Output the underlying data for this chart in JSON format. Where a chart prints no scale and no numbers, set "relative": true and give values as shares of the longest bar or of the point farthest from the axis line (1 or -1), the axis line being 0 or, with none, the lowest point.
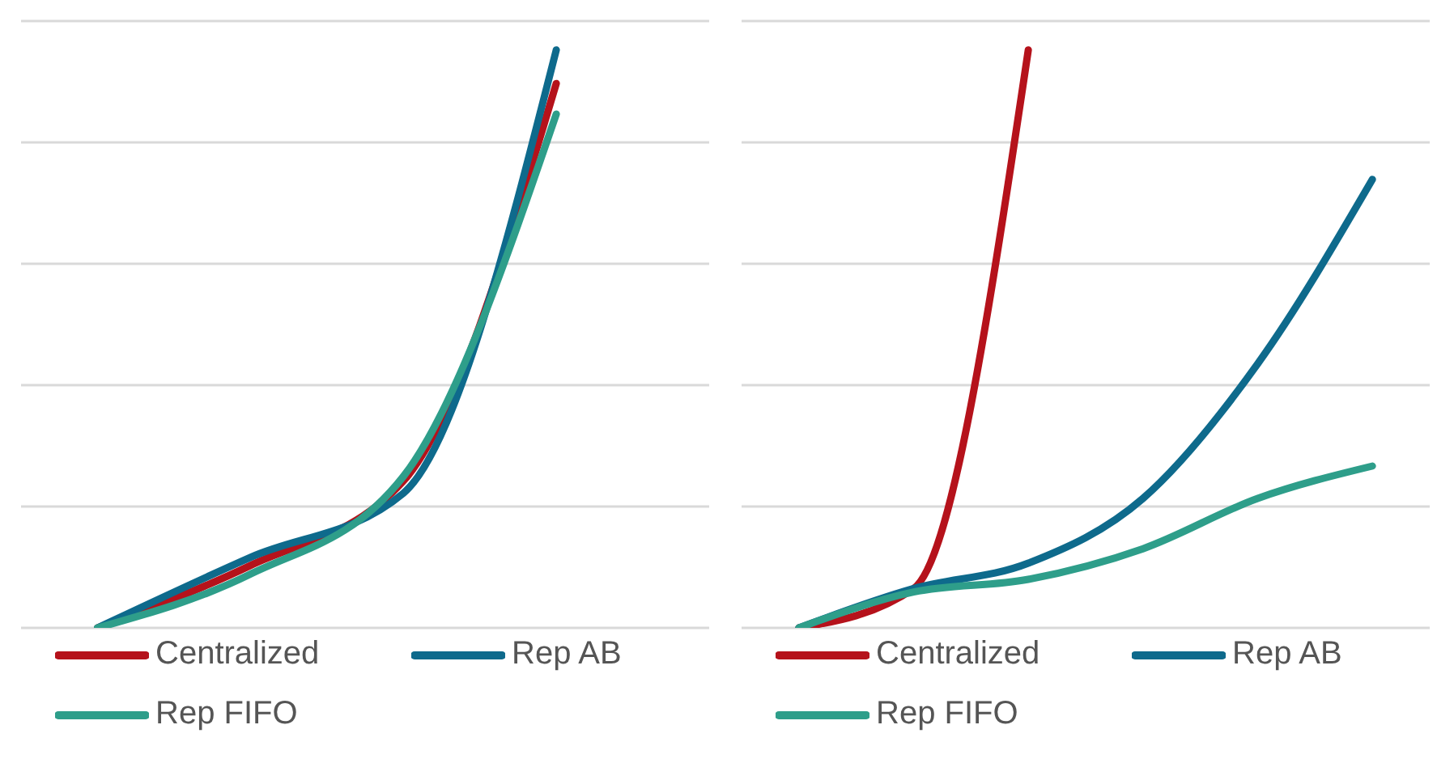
{
  "chart_data": [
    {
      "type": "line",
      "relative": true,
      "categories": [
        null,
        null,
        null,
        null
      ],
      "grid": "y",
      "legend": "bottom",
      "marker": "none",
      "series": [
        {
          "name": "Centralized",
          "color": "#b5121b",
          "values": [
            0,
            0.108,
            0.254,
            0.942
          ]
        },
        {
          "name": "Rep AB",
          "color": "#0e6a8c",
          "values": [
            0,
            0.122,
            0.233,
            1
          ]
        },
        {
          "name": "Rep FIFO",
          "color": "#2e9e8a",
          "values": [
            0,
            0.093,
            0.262,
            0.889
          ]
        }
      ]
    },
    {
      "type": "line",
      "relative": true,
      "categories": [
        null,
        null,
        null,
        null,
        null,
        null
      ],
      "grid": "y",
      "legend": "bottom",
      "marker": "none",
      "series": [
        {
          "name": "Centralized",
          "color": "#b5121b",
          "values": [
            0,
            0.068,
            1,
            null,
            null,
            null
          ]
        },
        {
          "name": "Rep AB",
          "color": "#0e6a8c",
          "values": [
            0,
            0.068,
            0.112,
            0.224,
            0.457,
            0.776
          ]
        },
        {
          "name": "Rep FIFO",
          "color": "#2e9e8a",
          "values": [
            0,
            0.062,
            0.084,
            0.137,
            0.224,
            0.28
          ]
        }
      ]
    }
  ]
}
